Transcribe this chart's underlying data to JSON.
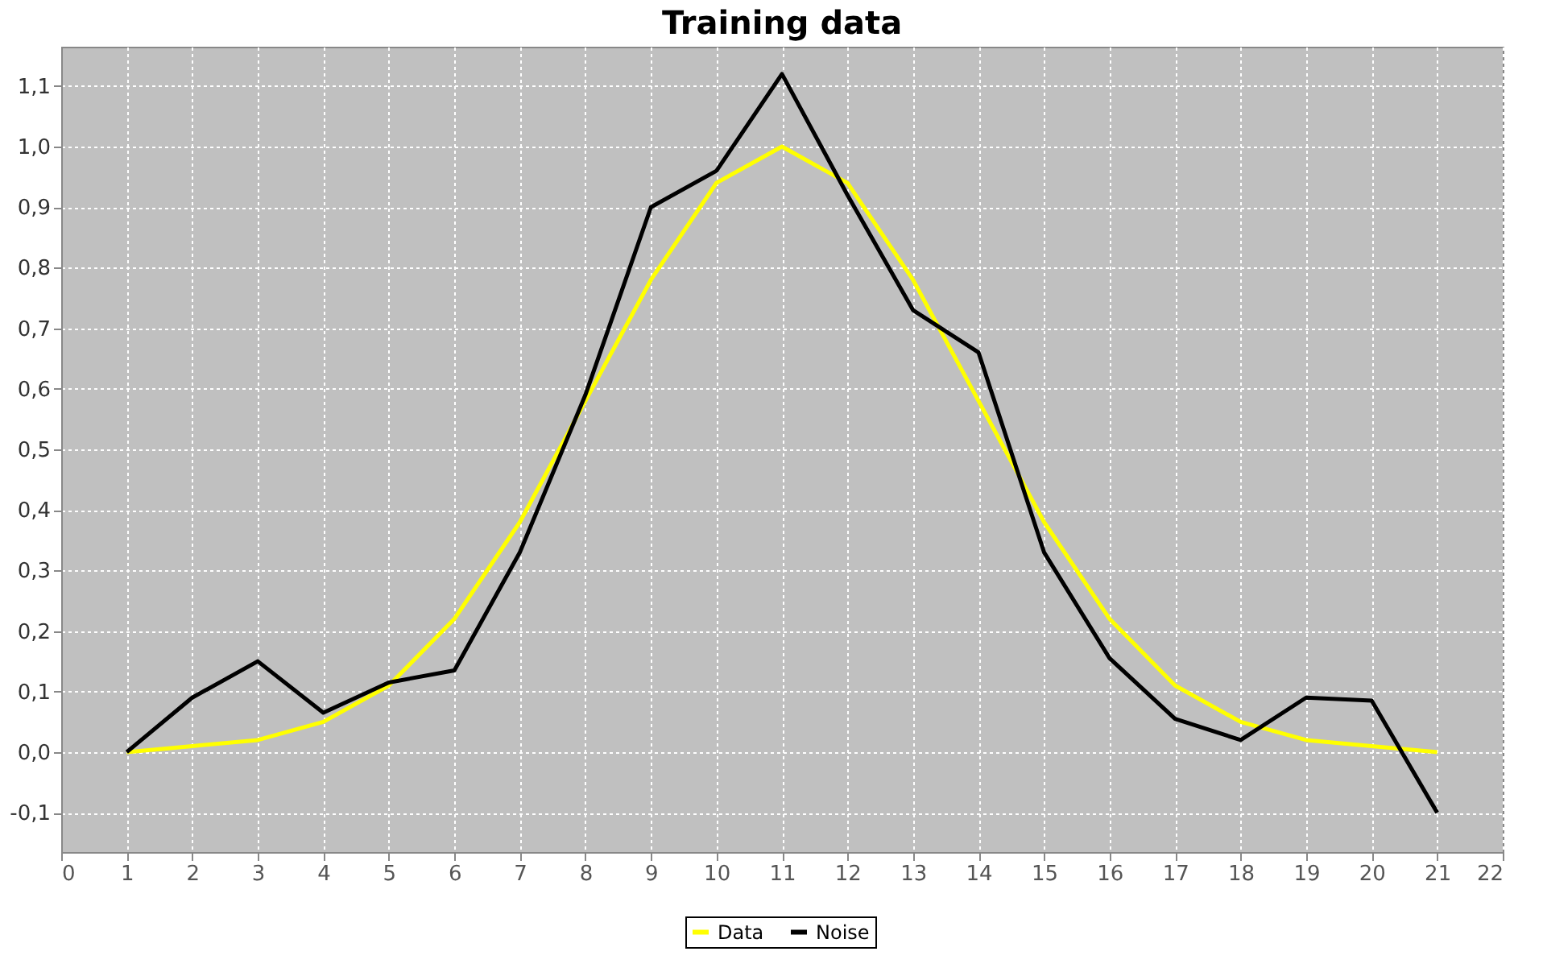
{
  "chart_data": {
    "type": "line",
    "title": "Training data",
    "x": [
      1,
      2,
      3,
      4,
      5,
      6,
      7,
      8,
      9,
      10,
      11,
      12,
      13,
      14,
      15,
      16,
      17,
      18,
      19,
      20,
      21
    ],
    "series": [
      {
        "name": "Data",
        "color": "#ffff00",
        "values": [
          0.0,
          0.01,
          0.02,
          0.05,
          0.11,
          0.22,
          0.38,
          0.58,
          0.78,
          0.94,
          1.0,
          0.94,
          0.78,
          0.58,
          0.38,
          0.22,
          0.11,
          0.05,
          0.02,
          0.01,
          0.0
        ]
      },
      {
        "name": "Noise",
        "color": "#000000",
        "values": [
          0.0,
          0.09,
          0.15,
          0.065,
          0.115,
          0.135,
          0.33,
          0.59,
          0.9,
          0.96,
          1.12,
          0.92,
          0.73,
          0.66,
          0.33,
          0.155,
          0.055,
          0.02,
          0.09,
          0.085,
          -0.1
        ]
      }
    ],
    "xlim": [
      0,
      22
    ],
    "xticks": [
      0,
      1,
      2,
      3,
      4,
      5,
      6,
      7,
      8,
      9,
      10,
      11,
      12,
      13,
      14,
      15,
      16,
      17,
      18,
      19,
      20,
      21,
      22
    ],
    "ylim": [
      -0.165,
      1.165
    ],
    "yticks": [
      {
        "value": -0.1,
        "label": "-0,1"
      },
      {
        "value": 0.0,
        "label": "0,0"
      },
      {
        "value": 0.1,
        "label": "0,1"
      },
      {
        "value": 0.2,
        "label": "0,2"
      },
      {
        "value": 0.3,
        "label": "0,3"
      },
      {
        "value": 0.4,
        "label": "0,4"
      },
      {
        "value": 0.5,
        "label": "0,5"
      },
      {
        "value": 0.6,
        "label": "0,6"
      },
      {
        "value": 0.7,
        "label": "0,7"
      },
      {
        "value": 0.8,
        "label": "0,8"
      },
      {
        "value": 0.9,
        "label": "0,9"
      },
      {
        "value": 1.0,
        "label": "1,0"
      },
      {
        "value": 1.1,
        "label": "1,1"
      }
    ],
    "grid": true,
    "legend": "bottom",
    "marker": "none",
    "line_style": "solid"
  }
}
